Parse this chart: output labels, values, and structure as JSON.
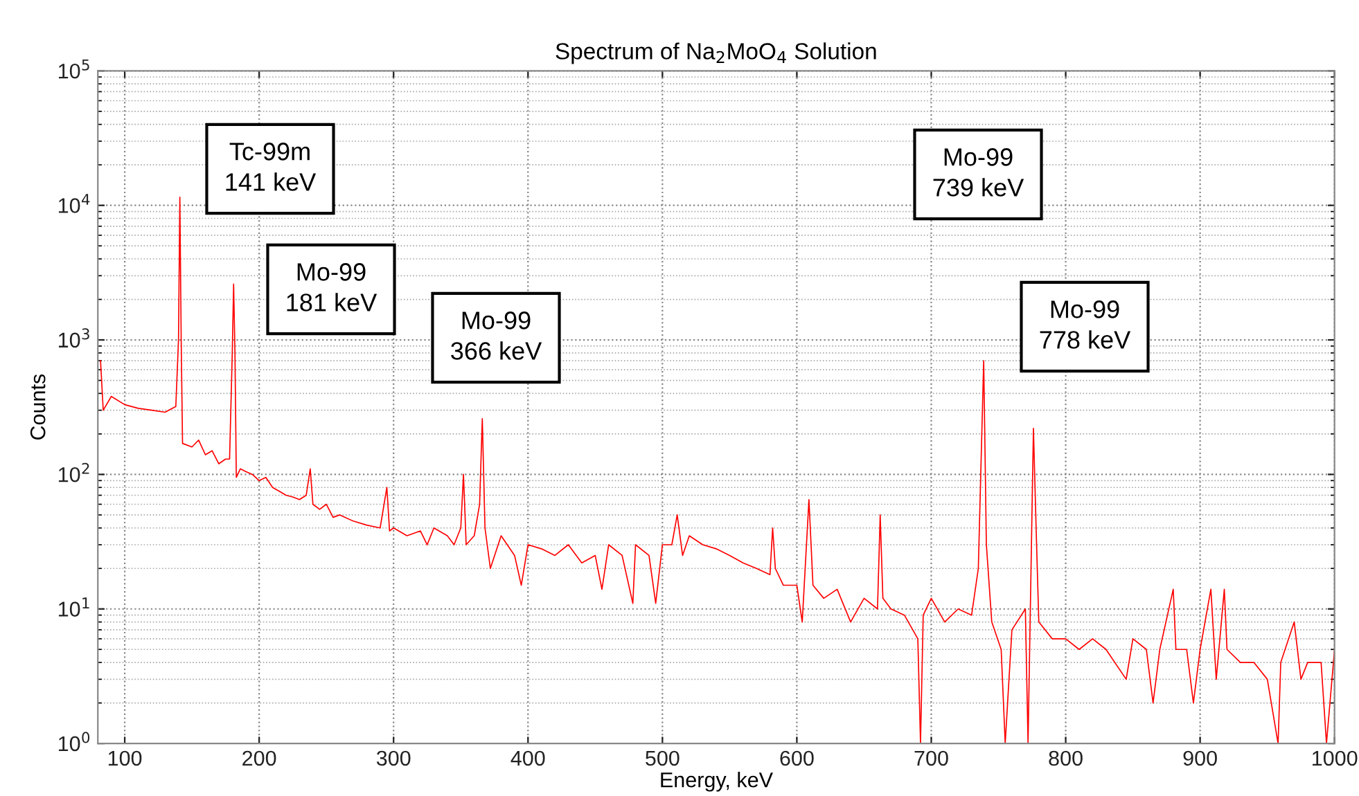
{
  "chart_data": {
    "type": "line",
    "title": "Spectrum of Na$_{2}$MoO$_{4}$ Solution",
    "xlabel": "Energy, keV",
    "ylabel": "Counts",
    "log": "y",
    "grid": true,
    "marker": "none",
    "line_style": "solid",
    "xlim": [
      80,
      1000
    ],
    "xticks": [
      100,
      200,
      300,
      400,
      500,
      600,
      700,
      800,
      900,
      1000
    ],
    "ylim": [
      1,
      100000
    ],
    "yticks": [
      {
        "value": 1,
        "label": "10$^{0}$"
      },
      {
        "value": 10,
        "label": "10$^{1}$"
      },
      {
        "value": 100,
        "label": "10$^{2}$"
      },
      {
        "value": 1000,
        "label": "10$^{3}$"
      },
      {
        "value": 10000,
        "label": "10$^{4}$"
      },
      {
        "value": 100000,
        "label": "10$^{5}$"
      }
    ],
    "annotations": [
      "Tc-99m\n141 keV",
      "Mo-99\n181 keV",
      "Mo-99\n366 keV",
      "Mo-99\n739 keV",
      "Mo-99\n778 keV"
    ],
    "series": [
      {
        "color": "#ff0000",
        "x": [
          82,
          84,
          90,
          100,
          110,
          120,
          130,
          138,
          140,
          141,
          142,
          143,
          150,
          155,
          160,
          165,
          170,
          175,
          178,
          180,
          181,
          182,
          183,
          186,
          190,
          195,
          200,
          205,
          210,
          215,
          220,
          225,
          230,
          235,
          238,
          240,
          245,
          250,
          255,
          260,
          270,
          280,
          290,
          295,
          297,
          300,
          310,
          320,
          325,
          330,
          340,
          345,
          350,
          352,
          354,
          360,
          364,
          366,
          368,
          372,
          380,
          390,
          395,
          400,
          410,
          420,
          430,
          440,
          450,
          455,
          460,
          470,
          478,
          480,
          490,
          495,
          500,
          507,
          511,
          515,
          520,
          530,
          540,
          550,
          560,
          570,
          580,
          582,
          584,
          590,
          600,
          604,
          609,
          612,
          620,
          630,
          640,
          650,
          660,
          662,
          664,
          670,
          680,
          690,
          692,
          694,
          700,
          710,
          720,
          730,
          735,
          739,
          741,
          745,
          752,
          755,
          760,
          770,
          772,
          776,
          778,
          780,
          790,
          800,
          810,
          820,
          830,
          845,
          850,
          860,
          865,
          870,
          880,
          882,
          890,
          895,
          900,
          908,
          912,
          918,
          920,
          930,
          940,
          950,
          958,
          960,
          970,
          975,
          980,
          990,
          994,
          1000
        ],
        "values": [
          700,
          300,
          380,
          330,
          310,
          300,
          290,
          320,
          1000,
          11500,
          1000,
          170,
          160,
          180,
          140,
          150,
          120,
          130,
          130,
          800,
          2600,
          800,
          95,
          110,
          105,
          100,
          90,
          95,
          80,
          75,
          70,
          68,
          65,
          70,
          110,
          60,
          55,
          60,
          48,
          50,
          45,
          42,
          40,
          80,
          38,
          40,
          35,
          38,
          30,
          40,
          35,
          30,
          40,
          100,
          30,
          35,
          60,
          260,
          40,
          20,
          35,
          25,
          15,
          30,
          28,
          25,
          30,
          22,
          25,
          14,
          30,
          25,
          11,
          30,
          25,
          11,
          30,
          30,
          50,
          25,
          35,
          30,
          28,
          25,
          22,
          20,
          18,
          40,
          20,
          15,
          15,
          8,
          65,
          15,
          12,
          14,
          8,
          12,
          10,
          50,
          12,
          10,
          9,
          6,
          1,
          9,
          12,
          8,
          10,
          9,
          20,
          700,
          30,
          8,
          5,
          1,
          7,
          10,
          1,
          220,
          40,
          8,
          6,
          6,
          5,
          6,
          5,
          3,
          6,
          5,
          2,
          5,
          14,
          5,
          5,
          2,
          5,
          14,
          3,
          14,
          5,
          4,
          4,
          3,
          1,
          4,
          8,
          3,
          4,
          4,
          1,
          5
        ]
      }
    ]
  }
}
